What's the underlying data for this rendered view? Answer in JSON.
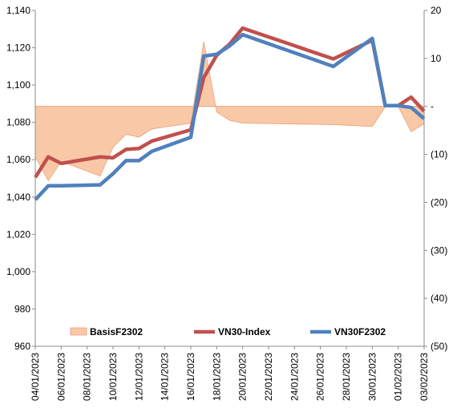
{
  "chart_data": {
    "type": "line",
    "x_dates": [
      "04/01/2023",
      "05/01/2023",
      "06/01/2023",
      "09/01/2023",
      "10/01/2023",
      "11/01/2023",
      "12/01/2023",
      "13/01/2023",
      "16/01/2023",
      "17/01/2023",
      "18/01/2023",
      "19/01/2023",
      "20/01/2023",
      "27/01/2023",
      "30/01/2023",
      "31/01/2023",
      "01/02/2023",
      "02/02/2023",
      "03/02/2023"
    ],
    "x_tick_labels": [
      "04/01/2023",
      "06/01/2023",
      "08/01/2023",
      "10/01/2023",
      "12/01/2023",
      "14/01/2023",
      "16/01/2023",
      "18/01/2023",
      "20/01/2023",
      "22/01/2023",
      "24/01/2023",
      "26/01/2023",
      "28/01/2023",
      "30/01/2023",
      "01/02/2023",
      "03/02/2023"
    ],
    "y_left": {
      "min": 960,
      "max": 1140,
      "step": 20,
      "tick_labels": [
        "960",
        "980",
        "1,000",
        "1,020",
        "1,040",
        "1,060",
        "1,080",
        "1,100",
        "1,120",
        "1,140"
      ]
    },
    "y_right": {
      "min": -50,
      "max": 20,
      "step": 10,
      "tick_labels": [
        "(50)",
        "(40)",
        "(30)",
        "(20)",
        "(10)",
        "-",
        "10",
        "20"
      ]
    },
    "grid": false,
    "legend_position": "bottom",
    "series": [
      {
        "name": "BasisF2302",
        "kind": "area",
        "axis": "right",
        "color": "#f9c9a7",
        "edge_color": "#e8a07a",
        "values": [
          -10.5,
          -15.5,
          -11.5,
          -14.5,
          -8.5,
          -5.8,
          -6.4,
          -4.7,
          -3.5,
          13.5,
          -1.2,
          -2.9,
          -3.5,
          -3.8,
          -4.2,
          -0.1,
          0,
          -5.3,
          -3.6
        ]
      },
      {
        "name": "VN30-Index",
        "kind": "line",
        "axis": "left",
        "color": "#c0504d",
        "values": [
          1050.5,
          1061.5,
          1058.0,
          1061.5,
          1061.0,
          1065.5,
          1066.0,
          1070.0,
          1076.0,
          1104.0,
          1116.0,
          1122.0,
          1130.5,
          1114.0,
          1124.0,
          1089.0,
          1089.0,
          1093.5,
          1086.0
        ]
      },
      {
        "name": "VN30F2302",
        "kind": "line",
        "axis": "left",
        "color": "#4f81bd",
        "values": [
          1038.5,
          1046.0,
          1046.0,
          1046.5,
          1052.5,
          1059.5,
          1059.5,
          1064.5,
          1072.0,
          1115.5,
          1116.5,
          1121.0,
          1127.0,
          1110.0,
          1125.0,
          1089.0,
          1089.0,
          1088.0,
          1082.0
        ]
      }
    ]
  }
}
